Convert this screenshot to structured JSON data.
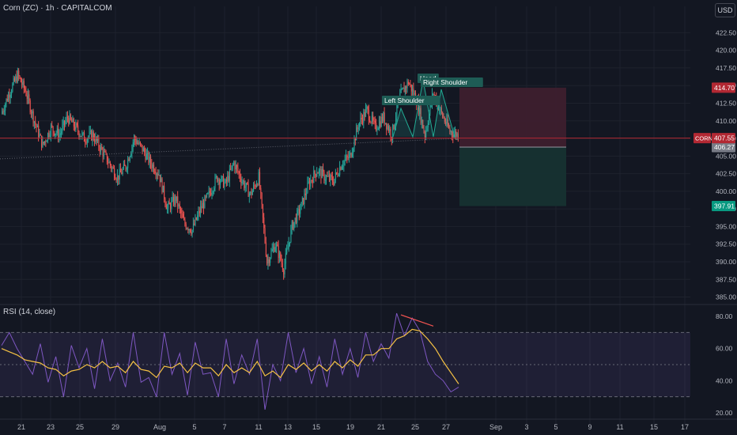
{
  "header": {
    "symbol_title": "Corn (ZC) · 1h · CAPITALCOM",
    "currency_button": "USD"
  },
  "rsi_panel": {
    "title": "RSI (14, close)"
  },
  "colors": {
    "background": "#131722",
    "grid": "#1e222d",
    "up": "#26a69a",
    "down": "#ef5350",
    "rsi_line": "#7e57c2",
    "rsi_ma": "#f6c244",
    "stop_zone": "#3d1f2e",
    "target_zone": "#163232",
    "last_price": "#b22833"
  },
  "chart_data": [
    {
      "type": "candlestick",
      "x_tick_labels": [
        "21",
        "23",
        "25",
        "29",
        "Aug",
        "5",
        "7",
        "11",
        "13",
        "15",
        "19",
        "21",
        "25",
        "27",
        "Sep",
        "3",
        "5",
        "9",
        "11",
        "15",
        "17"
      ],
      "y_tick_labels": [
        "422.50",
        "420.00",
        "417.50",
        "415.00",
        "412.50",
        "410.00",
        "407.50",
        "405.00",
        "402.50",
        "400.00",
        "397.50",
        "395.00",
        "392.50",
        "390.00",
        "387.50",
        "385.00"
      ],
      "ylim": [
        384.5,
        424
      ],
      "price_path_closes": [
        411,
        414,
        416.5,
        414,
        410,
        406.5,
        409,
        408,
        410.5,
        409,
        407.5,
        408,
        406,
        404,
        402,
        403.5,
        407.5,
        406,
        404,
        402.5,
        397.5,
        399,
        395.5,
        394.5,
        397.5,
        399.5,
        402,
        401,
        404,
        401.5,
        399.5,
        402,
        390,
        392.5,
        389,
        395,
        397.5,
        401,
        403,
        402,
        401.5,
        404,
        405,
        409.5,
        411.5,
        409,
        410.5,
        408,
        413.5,
        415.5,
        413,
        408,
        414,
        411,
        408.5,
        408
      ],
      "patterns": [
        {
          "label": "Left Shoulder"
        },
        {
          "label": "Head"
        },
        {
          "label": "Right Shoulder"
        }
      ],
      "risk_reward": {
        "stop": 414.7,
        "entry": 406.27,
        "target": 397.91
      },
      "price_labels": [
        {
          "text": "414.70",
          "value": 414.7,
          "color": "#b22833"
        },
        {
          "text": "406.27",
          "value": 406.27,
          "color": "#787b86"
        },
        {
          "text": "397.91",
          "value": 397.91,
          "color": "#089981"
        }
      ],
      "last_price": {
        "symbol": "CORN",
        "value": 407.55,
        "text": "407.55"
      },
      "neckline": [
        404.6,
        407.5
      ]
    },
    {
      "type": "line",
      "title": "RSI (14, close)",
      "ylim": [
        17,
        84
      ],
      "y_tick_labels": [
        "80.00",
        "60.00",
        "40.00",
        "20.00"
      ],
      "bands": {
        "upper": 70,
        "middle": 50,
        "lower": 30
      },
      "series": [
        {
          "name": "RSI",
          "values": [
            62,
            70,
            60,
            52,
            44,
            63,
            39,
            55,
            30,
            62,
            48,
            60,
            35,
            66,
            40,
            51,
            36,
            70,
            39,
            42,
            30,
            70,
            44,
            57,
            31,
            64,
            44,
            45,
            30,
            66,
            38,
            56,
            44,
            66,
            22,
            50,
            40,
            70,
            45,
            60,
            38,
            55,
            36,
            66,
            44,
            60,
            42,
            70,
            52,
            63,
            54,
            82,
            68,
            79,
            71,
            52,
            44,
            40,
            33,
            36
          ]
        },
        {
          "name": "RSI MA",
          "values": [
            60,
            58,
            56,
            53,
            52,
            51,
            48,
            47,
            43,
            46,
            47,
            50,
            48,
            52,
            48,
            49,
            45,
            52,
            47,
            46,
            42,
            49,
            48,
            51,
            45,
            51,
            48,
            48,
            43,
            50,
            45,
            48,
            45,
            52,
            43,
            46,
            42,
            50,
            47,
            51,
            46,
            50,
            46,
            52,
            48,
            53,
            49,
            56,
            56,
            60,
            60,
            66,
            68,
            72,
            71,
            66,
            60,
            52,
            45,
            38
          ]
        }
      ],
      "divergence_line": [
        81,
        74
      ]
    }
  ]
}
